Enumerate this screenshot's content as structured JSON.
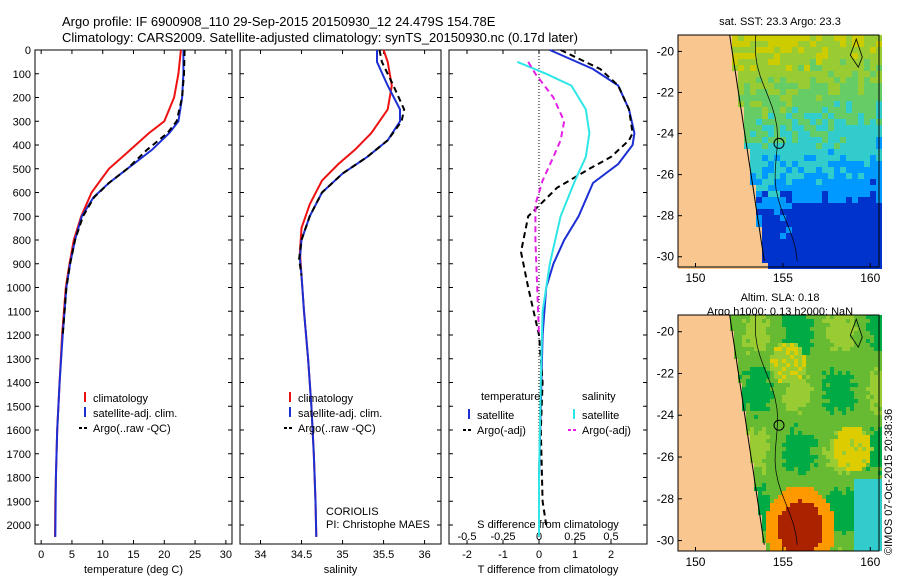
{
  "header": {
    "line1": "Argo profile: IF 6900908_110 29-Sep-2015 20150930_12 24.479S 154.78E",
    "line2": "Climatology: CARS2009. Satellite-adjusted climatology: synTS_20150930.nc (0.17d later)"
  },
  "credit": "©IMOS 07-Oct-2015 20:38:36",
  "colors": {
    "climatology": "#ee1111",
    "satellite": "#1c2fd4",
    "argo": "#000000",
    "satellite_s": "#2ee6e6",
    "argo_s": "#e61ee6"
  },
  "chart_data": [
    {
      "type": "line",
      "xlabel": "temperature (deg C)",
      "ylabel": "",
      "xlim": [
        -1,
        31
      ],
      "ylim": [
        2080,
        0
      ],
      "x_ticks": [
        0,
        5,
        10,
        15,
        20,
        25,
        30
      ],
      "y_ticks": [
        0,
        100,
        200,
        300,
        400,
        500,
        600,
        700,
        800,
        900,
        1000,
        1100,
        1200,
        1300,
        1400,
        1500,
        1600,
        1700,
        1800,
        1900,
        2000
      ],
      "legend": [
        "climatology",
        "satellite-adj. clim.",
        "Argo(..raw -QC)"
      ],
      "legend_position": "lower-middle",
      "series": [
        {
          "name": "climatology",
          "style": "solid",
          "color": "#ee1111",
          "x": [
            22.7,
            22.3,
            21.6,
            20.0,
            17.5,
            14.5,
            11.0,
            8.2,
            6.5,
            5.3,
            4.6,
            4.0,
            3.4,
            3.0,
            2.8,
            2.6,
            2.4,
            2.3,
            2.25
          ],
          "y": [
            0,
            100,
            200,
            300,
            350,
            420,
            500,
            600,
            700,
            800,
            900,
            1000,
            1200,
            1400,
            1500,
            1600,
            1800,
            1900,
            2050
          ]
        },
        {
          "name": "satellite-adj. clim.",
          "style": "solid",
          "color": "#1c2fd4",
          "x": [
            23.1,
            23.1,
            22.9,
            22.3,
            20.8,
            18.0,
            14.0,
            11.0,
            8.5,
            6.6,
            5.5,
            4.7,
            4.1,
            3.5,
            3.0,
            2.8,
            2.6,
            2.4,
            2.3
          ],
          "y": [
            0,
            100,
            200,
            300,
            350,
            420,
            500,
            560,
            620,
            700,
            800,
            900,
            1000,
            1200,
            1400,
            1500,
            1600,
            1800,
            2050
          ]
        },
        {
          "name": "Argo(..raw -QC)",
          "style": "dashed",
          "color": "#000000",
          "x": [
            23.3,
            23.2,
            22.9,
            22.0,
            20.5,
            17.2,
            14.0,
            11.0,
            8.6,
            6.8,
            5.5,
            4.7,
            4.1,
            3.5
          ],
          "y": [
            0,
            100,
            200,
            300,
            350,
            420,
            500,
            560,
            620,
            700,
            800,
            900,
            1000,
            1200
          ]
        }
      ]
    },
    {
      "type": "line",
      "xlabel": "salinity",
      "ylabel": "",
      "xlim": [
        33.75,
        36.2
      ],
      "ylim": [
        2080,
        0
      ],
      "x_ticks": [
        34,
        34.5,
        35,
        35.5,
        36
      ],
      "x_tick_labels": [
        "34",
        "34.5",
        "35",
        "35.5",
        "36"
      ],
      "y_ticks": [
        0,
        100,
        200,
        300,
        400,
        500,
        600,
        700,
        800,
        900,
        1000,
        1100,
        1200,
        1300,
        1400,
        1500,
        1600,
        1700,
        1800,
        1900,
        2000
      ],
      "legend": [
        "climatology",
        "satellite-adj. clim.",
        "Argo(..raw -QC)"
      ],
      "legend_position": "lower-middle",
      "annotation": [
        "CORIOLIS",
        "PI: Christophe MAES"
      ],
      "series": [
        {
          "name": "climatology",
          "style": "solid",
          "color": "#ee1111",
          "x": [
            35.5,
            35.55,
            35.6,
            35.55,
            35.35,
            35.15,
            34.95,
            34.75,
            34.6,
            34.5,
            34.48,
            34.5,
            34.53,
            34.58,
            34.62,
            34.65,
            34.67,
            34.68
          ],
          "y": [
            0,
            50,
            150,
            250,
            350,
            420,
            480,
            550,
            650,
            750,
            850,
            950,
            1100,
            1300,
            1500,
            1700,
            1900,
            2050
          ]
        },
        {
          "name": "satellite-adj. clim.",
          "style": "solid",
          "color": "#1c2fd4",
          "x": [
            35.42,
            35.42,
            35.55,
            35.7,
            35.7,
            35.55,
            35.3,
            35.0,
            34.75,
            34.6,
            34.5,
            34.48,
            34.5,
            34.53,
            34.58,
            34.62,
            34.65,
            34.67,
            34.68
          ],
          "y": [
            0,
            50,
            150,
            250,
            300,
            380,
            450,
            520,
            600,
            700,
            800,
            880,
            950,
            1100,
            1300,
            1500,
            1700,
            1900,
            2050
          ]
        },
        {
          "name": "Argo(..raw -QC)",
          "style": "dashed",
          "color": "#000000",
          "x": [
            35.45,
            35.48,
            35.62,
            35.75,
            35.72,
            35.55,
            35.3,
            35.0,
            34.75,
            34.6,
            34.5,
            34.47,
            34.5
          ],
          "y": [
            0,
            50,
            150,
            250,
            300,
            380,
            450,
            520,
            600,
            700,
            800,
            880,
            950
          ]
        }
      ]
    },
    {
      "type": "line",
      "xlabel": "T difference from climatology",
      "xlabel2": "S difference from climatology",
      "ylabel": "",
      "xlim": [
        -2.5,
        3.0
      ],
      "ylim": [
        2080,
        0
      ],
      "x_ticks": [
        -2,
        -1,
        0,
        1,
        2
      ],
      "x2_tick_labels": [
        "-0.5",
        "-0.25",
        "0",
        "0.25",
        "0.5"
      ],
      "y_ticks": [
        0,
        100,
        200,
        300,
        400,
        500,
        600,
        700,
        800,
        900,
        1000,
        1100,
        1200,
        1300,
        1400,
        1500,
        1600,
        1700,
        1800,
        1900,
        2000
      ],
      "legend_left_title": "temperature",
      "legend_right_title": "salinity",
      "legend": [
        "satellite",
        "Argo(-adj)",
        "satellite",
        "Argo(-adj)"
      ],
      "legend_position": "lower",
      "series": [
        {
          "name": "satellite",
          "group": "temperature",
          "style": "solid",
          "color": "#1c2fd4",
          "x": [
            0.3,
            1.5,
            2.2,
            2.5,
            2.65,
            2.6,
            2.2,
            1.5,
            1.1,
            0.7,
            0.4,
            0.2,
            0.1,
            0.05,
            0,
            0
          ],
          "y": [
            0,
            80,
            150,
            250,
            350,
            400,
            480,
            560,
            700,
            800,
            900,
            1000,
            1200,
            1500,
            1800,
            2050
          ]
        },
        {
          "name": "Argo(-adj)",
          "group": "temperature",
          "style": "dashed",
          "color": "#000000",
          "x": [
            0.6,
            1.7,
            2.2,
            2.5,
            2.6,
            2.5,
            2.0,
            1.4,
            0.5,
            -0.3,
            -0.5,
            -0.3,
            0.0,
            0.1,
            0.05,
            0.1,
            0.2
          ],
          "y": [
            0,
            80,
            150,
            250,
            350,
            380,
            450,
            500,
            580,
            700,
            850,
            1000,
            1200,
            1400,
            1600,
            1900,
            2000
          ]
        },
        {
          "name": "satellite",
          "group": "salinity",
          "style": "solid",
          "color": "#2ee6e6",
          "x": [
            -0.6,
            0.2,
            0.9,
            1.3,
            1.4,
            1.3,
            1.0,
            0.6,
            0.3,
            0.1,
            0.05,
            0.0,
            0.0
          ],
          "y": [
            50,
            100,
            150,
            250,
            350,
            450,
            550,
            700,
            900,
            1100,
            1400,
            1800,
            2050
          ]
        },
        {
          "name": "Argo(-adj)",
          "group": "salinity",
          "style": "dashed",
          "color": "#e61ee6",
          "x": [
            -0.3,
            -0.1,
            0.4,
            0.7,
            0.6,
            0.4,
            0.1,
            -0.1,
            -0.1,
            -0.05,
            0.0
          ],
          "y": [
            50,
            100,
            200,
            300,
            380,
            450,
            550,
            650,
            800,
            1000,
            1200
          ]
        }
      ]
    },
    {
      "type": "heatmap",
      "title": "sat. SST: 23.3 Argo: 23.3",
      "xlim": [
        149,
        160.5
      ],
      "ylim": [
        -30.5,
        -19.2
      ],
      "x_ticks": [
        150,
        155,
        160
      ],
      "y_ticks": [
        -20,
        -22,
        -24,
        -26,
        -28,
        -30
      ],
      "marker": {
        "lon": 154.78,
        "lat": -24.479
      },
      "land_color": "#f9c68f",
      "colorscale": [
        "#0033cc",
        "#0099ff",
        "#33cccc",
        "#66cc66",
        "#99cc33",
        "#cccc00",
        "#ffcc00"
      ]
    },
    {
      "type": "heatmap",
      "title": "Altim. SLA: 0.18",
      "subtitle": "Argo h1000: 0.13 h2000: NaN",
      "xlim": [
        149,
        160.5
      ],
      "ylim": [
        -30.5,
        -19.2
      ],
      "x_ticks": [
        150,
        155,
        160
      ],
      "y_ticks": [
        -20,
        -22,
        -24,
        -26,
        -28,
        -30
      ],
      "marker": {
        "lon": 154.78,
        "lat": -24.479
      },
      "land_color": "#f9c68f",
      "colorscale": [
        "#33cccc",
        "#00aa44",
        "#66bb33",
        "#99cc33",
        "#ddcc00",
        "#ff9900",
        "#aa2200"
      ]
    }
  ]
}
